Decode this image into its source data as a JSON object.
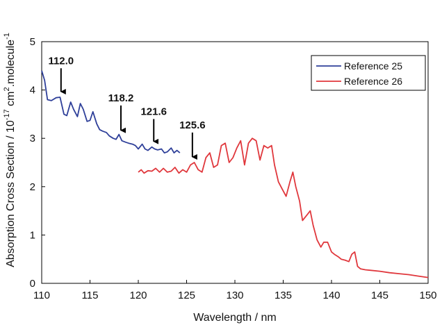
{
  "chart_data": {
    "type": "line",
    "xlabel": "Wavelength / nm",
    "ylabel": {
      "prefix": "Absorption Cross Section / 10",
      "exp1": "-17",
      "mid": " cm",
      "exp2": "2",
      "suffix": ".molecule",
      "exp3": "-1"
    },
    "xlim": [
      110,
      150
    ],
    "ylim": [
      0,
      5
    ],
    "xticks": [
      "110",
      "115",
      "120",
      "125",
      "130",
      "135",
      "140",
      "145",
      "150"
    ],
    "yticks": [
      "0",
      "1",
      "2",
      "3",
      "4",
      "5"
    ],
    "grid": false,
    "legend_position": "top-right",
    "series": [
      {
        "name": "Reference 25",
        "color": "#2e3f99",
        "x": [
          110.0,
          110.3,
          110.6,
          111.0,
          111.5,
          111.9,
          112.3,
          112.6,
          113.0,
          113.3,
          113.7,
          114.0,
          114.3,
          114.7,
          115.0,
          115.3,
          115.7,
          116.0,
          116.3,
          116.7,
          117.0,
          117.4,
          117.7,
          118.0,
          118.3,
          118.7,
          119.0,
          119.4,
          119.7,
          120.0,
          120.4,
          120.7,
          121.0,
          121.4,
          121.7,
          122.0,
          122.4,
          122.7,
          123.0,
          123.4,
          123.7,
          124.0,
          124.3
        ],
        "y": [
          4.4,
          4.2,
          3.8,
          3.78,
          3.84,
          3.85,
          3.5,
          3.47,
          3.75,
          3.6,
          3.45,
          3.72,
          3.6,
          3.35,
          3.37,
          3.55,
          3.3,
          3.18,
          3.15,
          3.12,
          3.05,
          3.0,
          2.98,
          3.08,
          2.95,
          2.92,
          2.9,
          2.88,
          2.85,
          2.78,
          2.88,
          2.78,
          2.75,
          2.82,
          2.78,
          2.76,
          2.78,
          2.7,
          2.72,
          2.8,
          2.7,
          2.75,
          2.7
        ]
      },
      {
        "name": "Reference 26",
        "color": "#e0373c",
        "x": [
          120.0,
          120.3,
          120.6,
          121.0,
          121.4,
          121.8,
          122.2,
          122.6,
          123.0,
          123.4,
          123.8,
          124.2,
          124.6,
          125.0,
          125.4,
          125.8,
          126.2,
          126.6,
          127.0,
          127.4,
          127.8,
          128.2,
          128.6,
          129.0,
          129.4,
          129.8,
          130.2,
          130.6,
          131.0,
          131.4,
          131.8,
          132.2,
          132.6,
          133.0,
          133.4,
          133.8,
          134.1,
          134.5,
          134.9,
          135.3,
          135.7,
          136.0,
          136.3,
          136.7,
          137.0,
          137.4,
          137.8,
          138.1,
          138.5,
          138.9,
          139.2,
          139.6,
          140.0,
          140.3,
          140.7,
          141.0,
          141.4,
          141.8,
          142.1,
          142.4,
          142.7,
          143.0,
          143.5,
          144.0,
          145.0,
          146.0,
          147.0,
          148.0,
          149.0,
          150.0
        ],
        "y": [
          2.3,
          2.35,
          2.28,
          2.33,
          2.32,
          2.38,
          2.3,
          2.38,
          2.3,
          2.32,
          2.4,
          2.28,
          2.35,
          2.3,
          2.45,
          2.5,
          2.35,
          2.3,
          2.6,
          2.7,
          2.4,
          2.45,
          2.85,
          2.9,
          2.5,
          2.6,
          2.8,
          2.95,
          2.45,
          2.9,
          3.0,
          2.95,
          2.55,
          2.85,
          2.8,
          2.85,
          2.45,
          2.1,
          1.95,
          1.8,
          2.1,
          2.3,
          2.0,
          1.7,
          1.3,
          1.4,
          1.5,
          1.2,
          0.9,
          0.75,
          0.85,
          0.85,
          0.65,
          0.6,
          0.55,
          0.5,
          0.48,
          0.45,
          0.6,
          0.65,
          0.35,
          0.3,
          0.28,
          0.27,
          0.25,
          0.22,
          0.2,
          0.18,
          0.15,
          0.12
        ]
      }
    ],
    "annotations": [
      {
        "label": "112.0",
        "x": 112.0,
        "tip_y": 3.85,
        "tail_y": 4.45
      },
      {
        "label": "118.2",
        "x": 118.2,
        "tip_y": 3.05,
        "tail_y": 3.68
      },
      {
        "label": "121.6",
        "x": 121.6,
        "tip_y": 2.82,
        "tail_y": 3.4
      },
      {
        "label": "125.6",
        "x": 125.6,
        "tip_y": 2.5,
        "tail_y": 3.12
      }
    ]
  }
}
